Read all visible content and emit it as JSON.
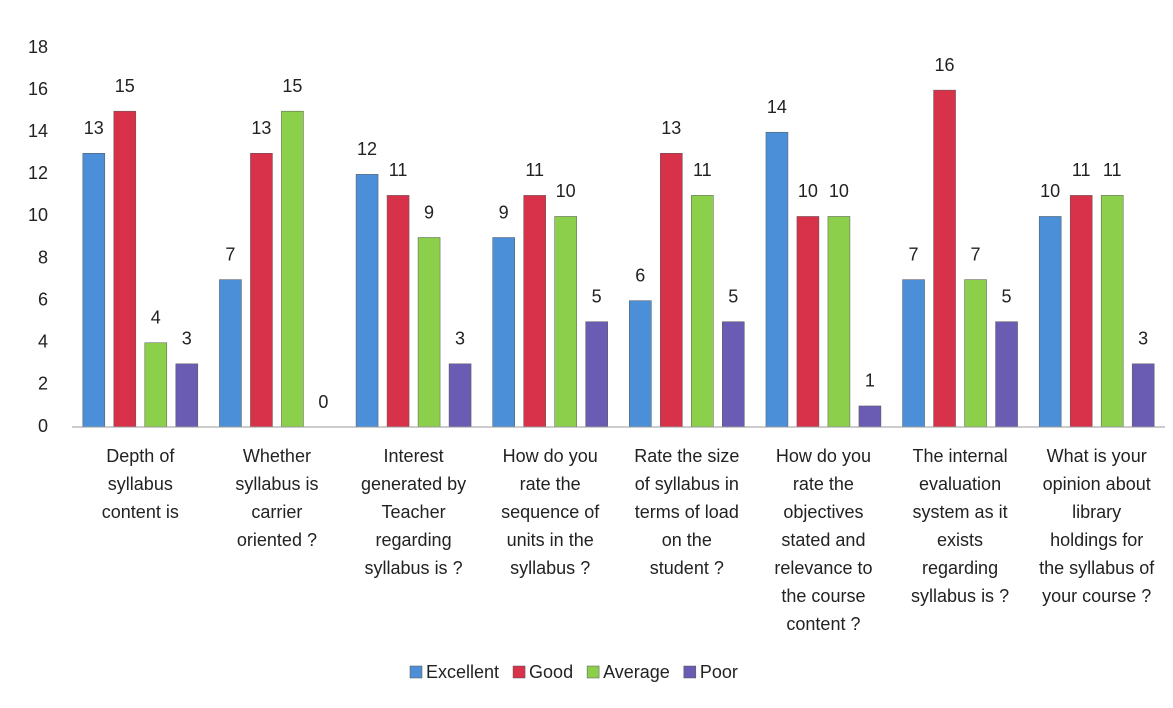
{
  "chart_data": {
    "type": "bar",
    "categories": [
      "Depth of\nsyllabus\ncontent is",
      "Whether\nsyllabus is\ncarrier\noriented ?",
      "Interest\ngenerated by\nTeacher\nregarding\nsyllabus is ?",
      "How do you\nrate the\nsequence of\nunits in the\nsyllabus ?",
      "Rate the size\nof syllabus in\nterms of load\non the\nstudent ?",
      "How do you\nrate the\nobjectives\nstated and\nrelevance to\nthe course\ncontent ?",
      "The internal\nevaluation\nsystem as it\nexists\nregarding\nsyllabus is ?",
      "What is your\nopinion about\nlibrary\nholdings for\nthe syllabus of\nyour course ?"
    ],
    "series": [
      {
        "name": "Excellent",
        "color": "#4a8fd8",
        "values": [
          13,
          7,
          12,
          9,
          6,
          14,
          7,
          10
        ]
      },
      {
        "name": "Good",
        "color": "#d8314a",
        "values": [
          15,
          13,
          11,
          11,
          13,
          10,
          16,
          11
        ]
      },
      {
        "name": "Average",
        "color": "#8ccf4a",
        "values": [
          4,
          15,
          9,
          10,
          11,
          10,
          7,
          11
        ]
      },
      {
        "name": "Poor",
        "color": "#6a5cb3",
        "values": [
          3,
          0,
          3,
          5,
          5,
          1,
          5,
          3
        ]
      }
    ],
    "ylim": [
      0,
      18
    ],
    "yticks": [
      0,
      2,
      4,
      6,
      8,
      10,
      12,
      14,
      16,
      18
    ],
    "grid": false,
    "legend": "bottom"
  }
}
